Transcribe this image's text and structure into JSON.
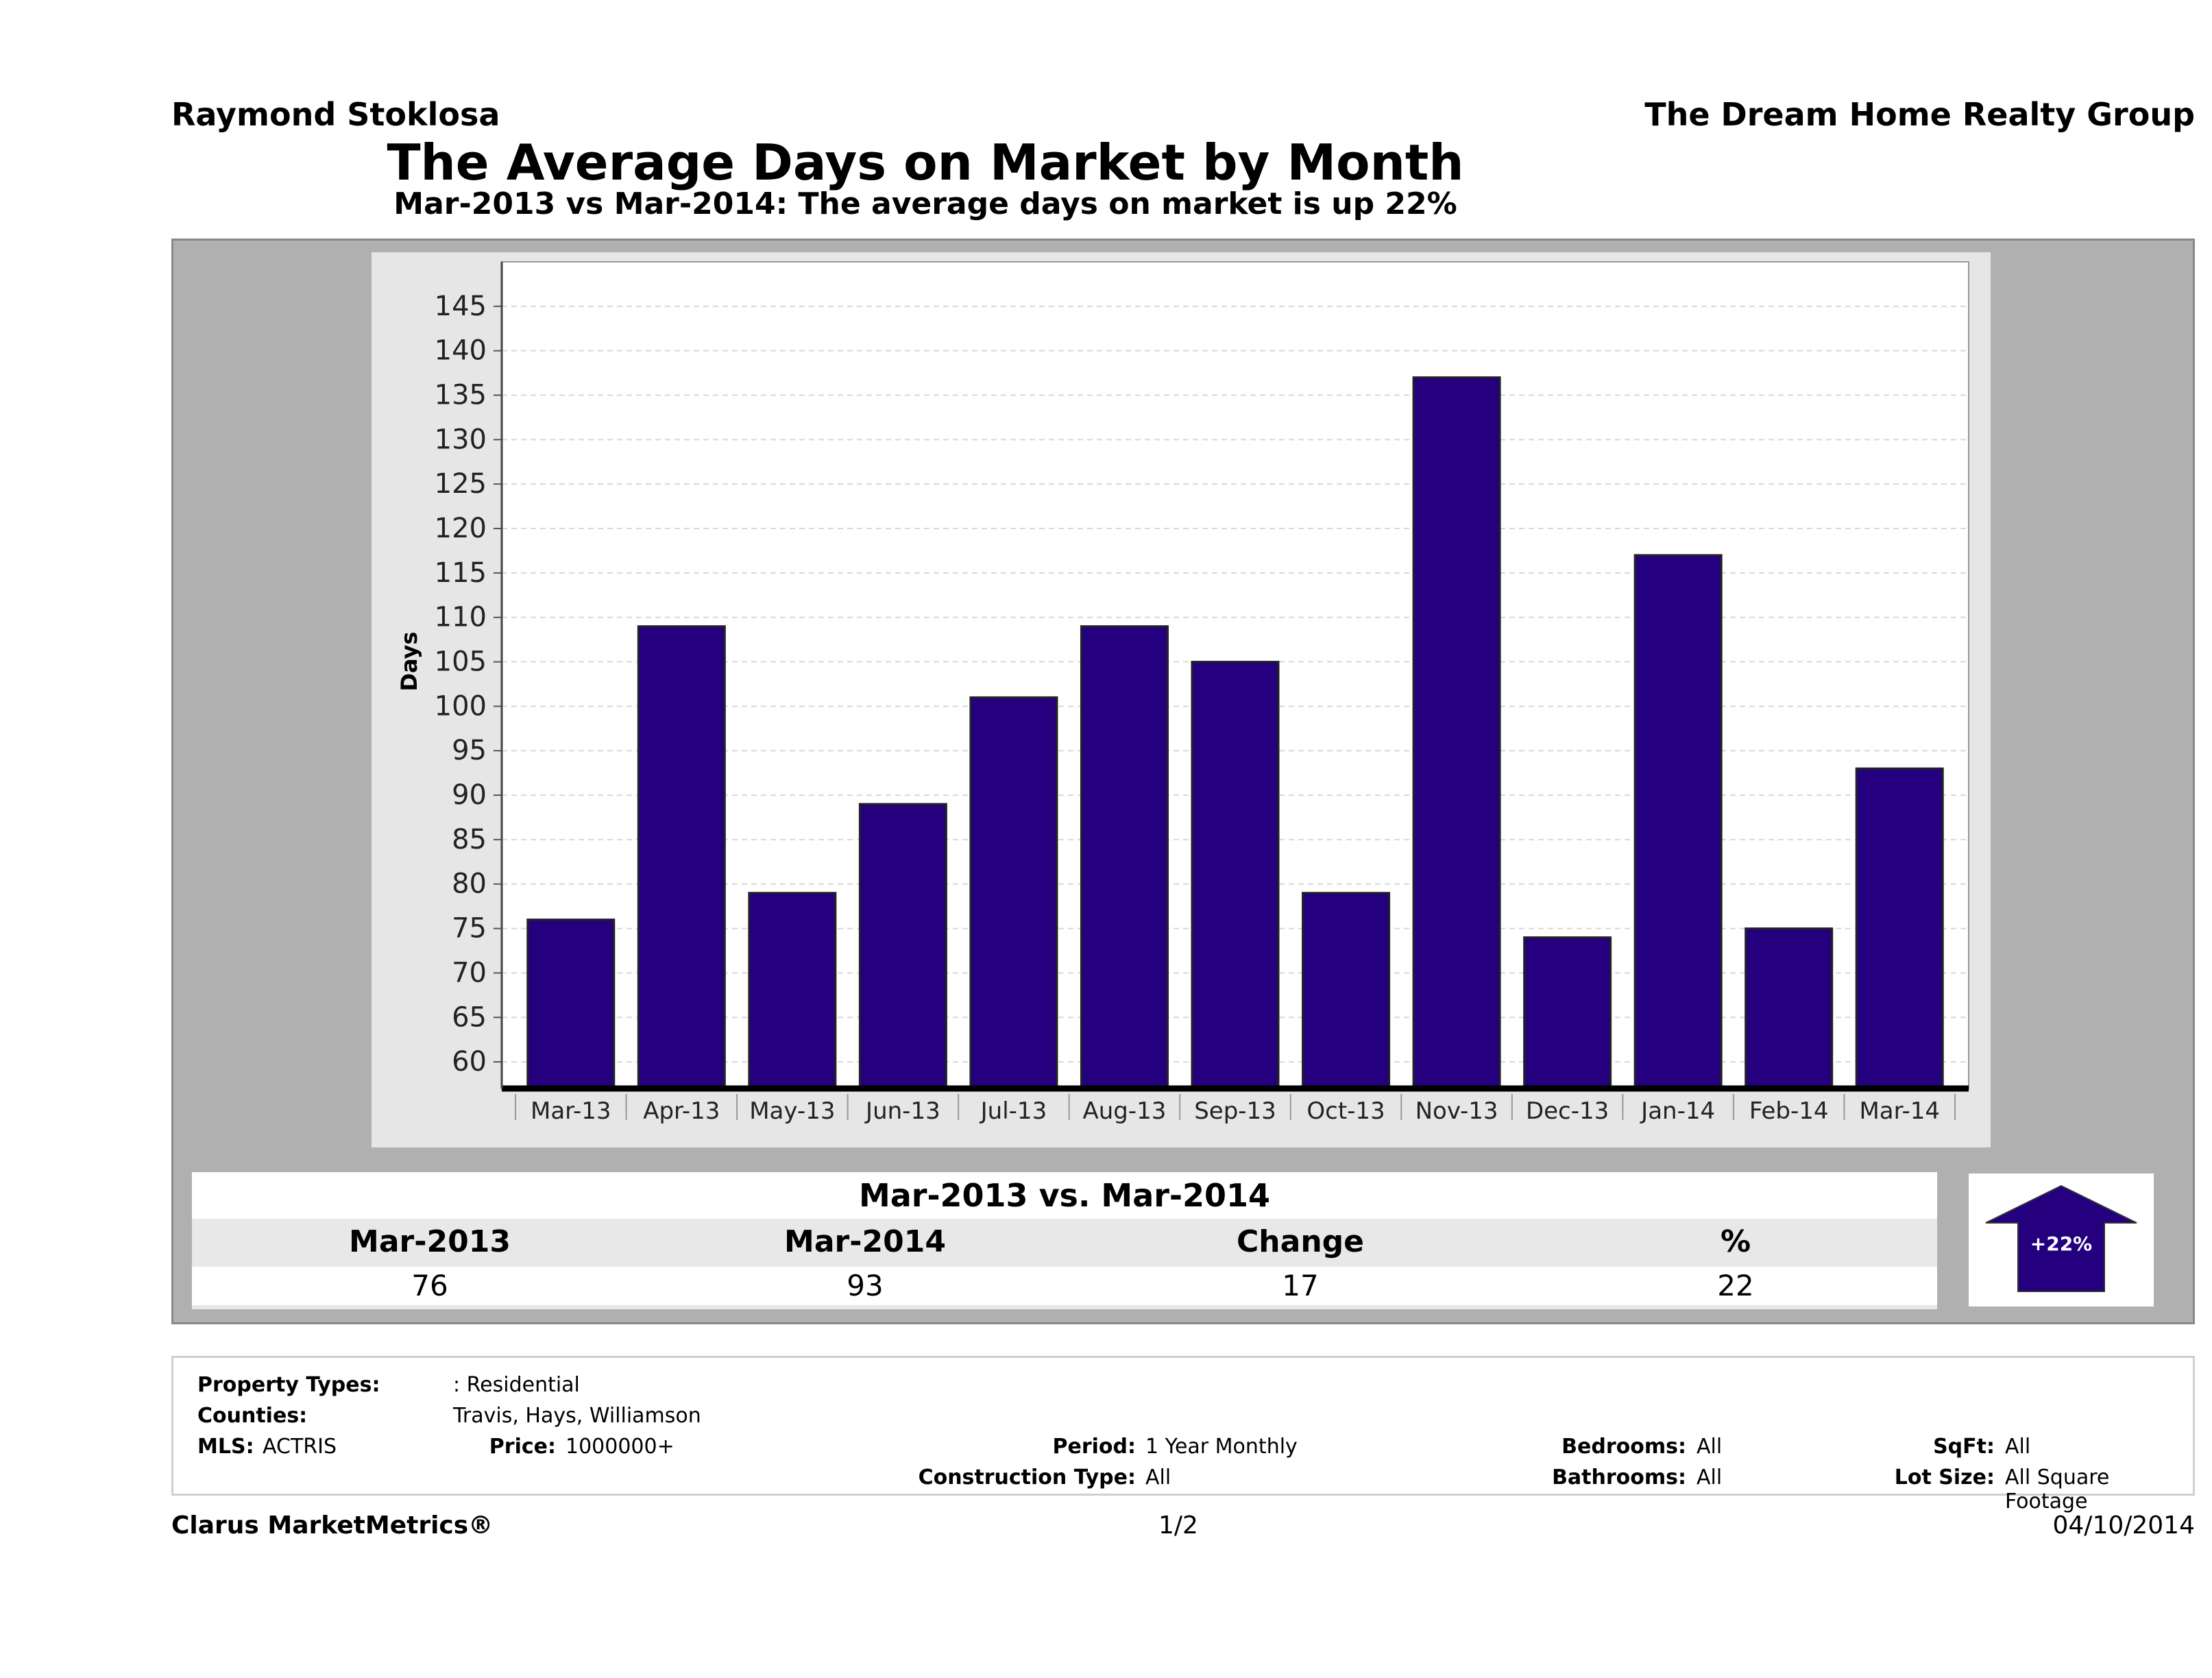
{
  "header": {
    "agent": "Raymond Stoklosa",
    "company": "The Dream Home Realty Group",
    "title": "The Average Days on Market by Month",
    "subtitle": "Mar-2013 vs Mar-2014: The average days on market is up 22%"
  },
  "chart_data": {
    "type": "bar",
    "title": "The Average Days on Market by Month",
    "subtitle": "Mar-2013 vs Mar-2014: The average days on market is up 22%",
    "xlabel": "",
    "ylabel": "Days",
    "categories": [
      "Mar-13",
      "Apr-13",
      "May-13",
      "Jun-13",
      "Jul-13",
      "Aug-13",
      "Sep-13",
      "Oct-13",
      "Nov-13",
      "Dec-13",
      "Jan-14",
      "Feb-14",
      "Mar-14"
    ],
    "values": [
      76,
      109,
      79,
      89,
      101,
      109,
      105,
      79,
      137,
      74,
      117,
      75,
      93
    ],
    "ylim": [
      57,
      150
    ],
    "yticks": [
      60,
      65,
      70,
      75,
      80,
      85,
      90,
      95,
      100,
      105,
      110,
      115,
      120,
      125,
      130,
      135,
      140,
      145
    ],
    "grid": true,
    "bar_color": "#24007f",
    "legend": "none"
  },
  "comparison": {
    "title": "Mar-2013 vs. Mar-2014",
    "headers": [
      "Mar-2013",
      "Mar-2014",
      "Change",
      "%"
    ],
    "values": [
      "76",
      "93",
      "17",
      "22"
    ],
    "badge": "+22%",
    "badge_color": "#24007f"
  },
  "criteria": {
    "property_types_label": "Property Types:",
    "property_types_value": ": Residential",
    "counties_label": "Counties:",
    "counties_value": "Travis, Hays, Williamson",
    "mls_label": "MLS:",
    "mls_value": "ACTRIS",
    "price_label": "Price:",
    "price_value": "1000000+",
    "period_label": "Period:",
    "period_value": "1 Year Monthly",
    "construction_label": "Construction Type:",
    "construction_value": "All",
    "bedrooms_label": "Bedrooms:",
    "bedrooms_value": "All",
    "bathrooms_label": "Bathrooms:",
    "bathrooms_value": "All",
    "sqft_label": "SqFt:",
    "sqft_value": "All",
    "lot_label": "Lot Size:",
    "lot_value": "All Square Footage"
  },
  "footer": {
    "brand": "Clarus MarketMetrics®",
    "page": "1/2",
    "date": "04/10/2014"
  }
}
